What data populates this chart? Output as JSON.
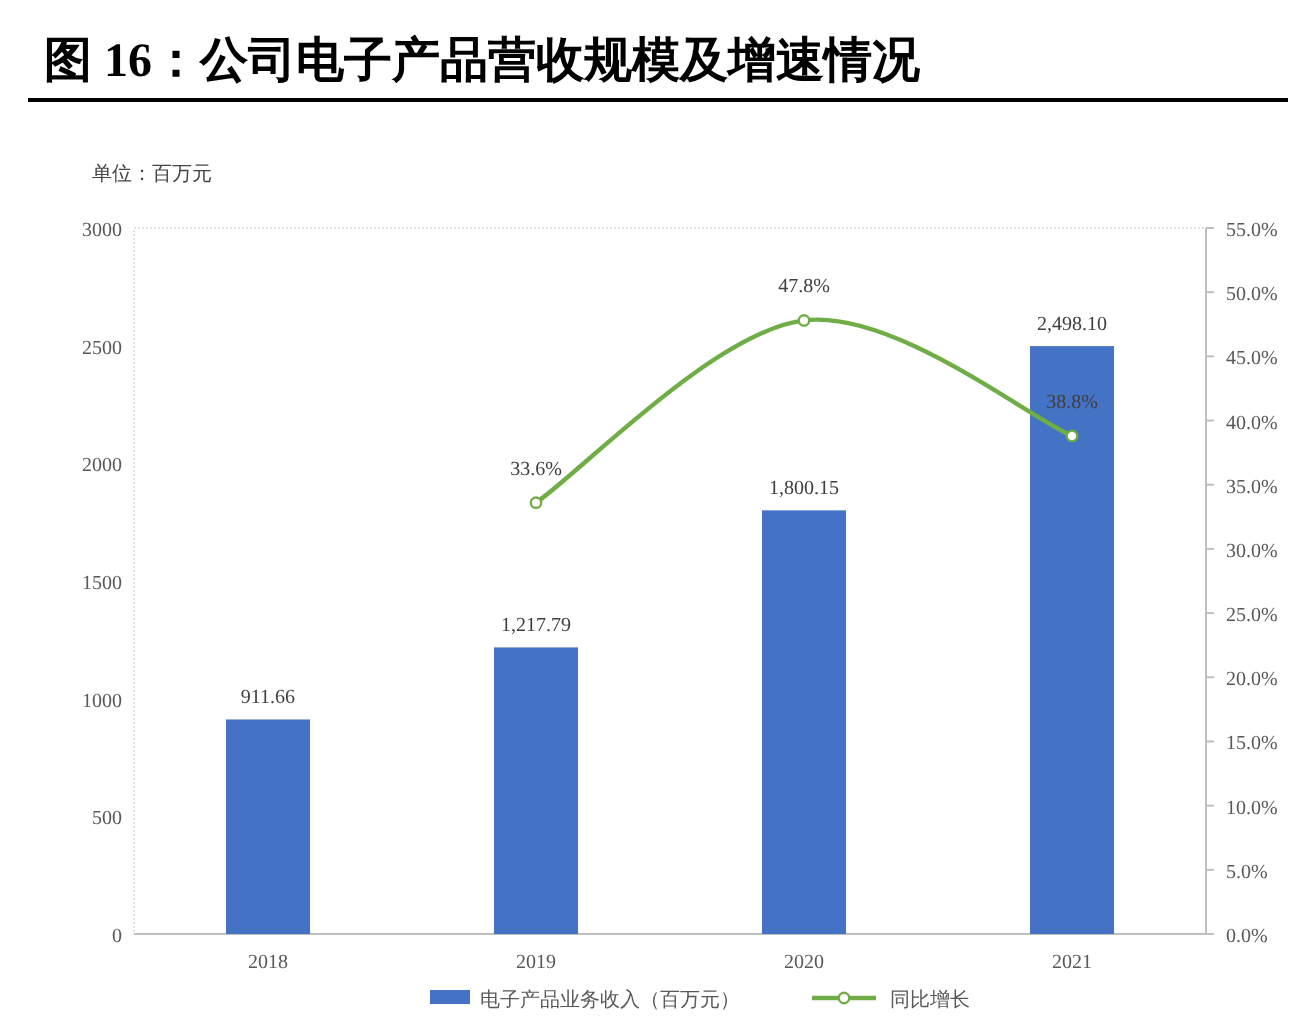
{
  "chart_data": {
    "type": "bar",
    "title": "图 16：公司电子产品营收规模及增速情况",
    "annotations": [
      "单位：百万元"
    ],
    "categories": [
      "2018",
      "2019",
      "2020",
      "2021"
    ],
    "series": [
      {
        "name": "电子产品业务收入（百万元）",
        "color": "#4472c4",
        "values": [
          911.66,
          1217.79,
          1800.15,
          2498.1
        ],
        "value_labels": [
          "911.66",
          "1,217.79",
          "1,800.15",
          "2,498.10"
        ]
      },
      {
        "name": "同比增长",
        "type": "line",
        "axis": "y2",
        "color": "#70ad47",
        "marker": "circle",
        "values": [
          null,
          33.6,
          47.8,
          38.8
        ],
        "value_labels": [
          null,
          "33.6%",
          "47.8%",
          "38.8%"
        ]
      }
    ],
    "ylim": [
      0,
      3000
    ],
    "yticks": [
      0,
      500,
      1000,
      1500,
      2000,
      2500,
      3000
    ],
    "y2lim": [
      0,
      55
    ],
    "y2ticks": [
      {
        "value": 0,
        "label": "0.0%"
      },
      {
        "value": 5,
        "label": "5.0%"
      },
      {
        "value": 10,
        "label": "10.0%"
      },
      {
        "value": 15,
        "label": "15.0%"
      },
      {
        "value": 20,
        "label": "20.0%"
      },
      {
        "value": 25,
        "label": "25.0%"
      },
      {
        "value": 30,
        "label": "30.0%"
      },
      {
        "value": 35,
        "label": "35.0%"
      },
      {
        "value": 40,
        "label": "40.0%"
      },
      {
        "value": 45,
        "label": "45.0%"
      },
      {
        "value": 50,
        "label": "50.0%"
      },
      {
        "value": 55,
        "label": "55.0%"
      }
    ],
    "legend": "bottom"
  }
}
